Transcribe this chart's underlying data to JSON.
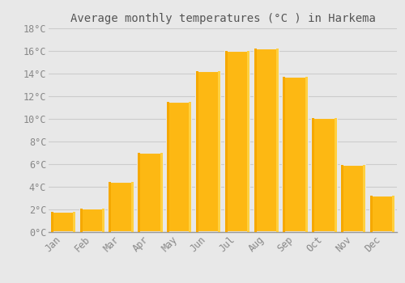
{
  "title": "Average monthly temperatures (°C ) in Harkema",
  "months": [
    "Jan",
    "Feb",
    "Mar",
    "Apr",
    "May",
    "Jun",
    "Jul",
    "Aug",
    "Sep",
    "Oct",
    "Nov",
    "Dec"
  ],
  "values": [
    1.8,
    2.1,
    4.4,
    7.0,
    11.5,
    14.2,
    16.0,
    16.2,
    13.7,
    10.1,
    5.9,
    3.2
  ],
  "bar_color_main": "#FDB813",
  "bar_color_left": "#F5A800",
  "bar_color_right": "#FFD040",
  "background_color": "#E8E8E8",
  "plot_bg_color": "#E8E8E8",
  "grid_color": "#CCCCCC",
  "ylim": [
    0,
    18
  ],
  "yticks": [
    0,
    2,
    4,
    6,
    8,
    10,
    12,
    14,
    16,
    18
  ],
  "tick_label_color": "#888888",
  "title_color": "#555555",
  "title_fontsize": 10,
  "tick_fontsize": 8.5,
  "bar_width": 0.85,
  "bar_gap_color": "#E8E8E8"
}
